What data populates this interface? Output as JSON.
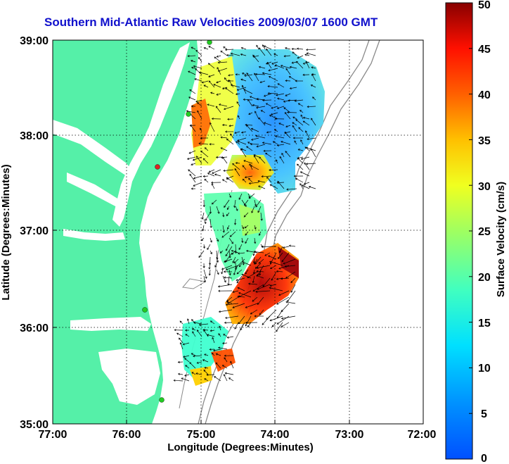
{
  "title": "Southern Mid-Atlantic Raw Velocities 2009/03/07 1600 GMT",
  "x_axis": {
    "label": "Longitude (Degrees:Minutes)",
    "ticks": [
      "77:00",
      "76:00",
      "75:00",
      "74:00",
      "73:00",
      "72:00"
    ]
  },
  "y_axis": {
    "label": "Latitude (Degrees:Minutes)",
    "ticks": [
      "39:00",
      "38:00",
      "37:00",
      "36:00",
      "35:00"
    ]
  },
  "colorbar": {
    "label": "Surface Velocity (cm/s)",
    "ticks": [
      "50",
      "45",
      "40",
      "35",
      "30",
      "25",
      "20",
      "15",
      "10",
      "5",
      "0"
    ],
    "min": 0,
    "max": 50
  },
  "colors": {
    "land": "#55f0a8",
    "water": "#ffffff",
    "title": "#1010cc",
    "station_green": "#22cc22",
    "station_red": "#dd2222"
  },
  "map": {
    "lon_range": [
      -77,
      -72
    ],
    "lat_range": [
      35,
      39
    ],
    "grid": true
  }
}
